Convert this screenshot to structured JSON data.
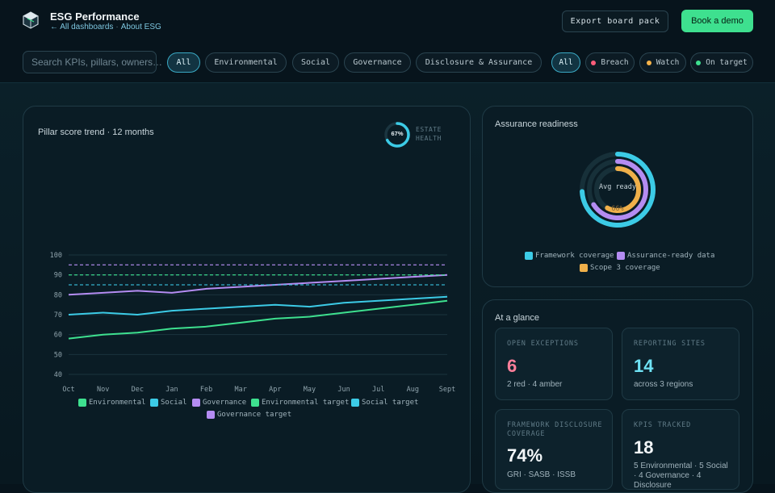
{
  "header": {
    "title": "ESG Performance",
    "back_link": "← All dashboards",
    "separator": "·",
    "about_link": "About ESG",
    "export_label": "Export board pack",
    "demo_label": "Book a demo"
  },
  "filters": {
    "search_placeholder": "Search KPIs, pillars, owners…",
    "pillars": [
      "All",
      "Environmental",
      "Social",
      "Governance",
      "Disclosure & Assurance"
    ],
    "statuses": [
      {
        "label": "All",
        "color": ""
      },
      {
        "label": "Breach",
        "color": "#ff5d7a"
      },
      {
        "label": "Watch",
        "color": "#f5b34a"
      },
      {
        "label": "On target",
        "color": "#3ee08f"
      }
    ]
  },
  "trend_card": {
    "title": "Pillar score trend · 12 months",
    "health_value": "67%",
    "health_label_line1": "ESTATE",
    "health_label_line2": "HEALTH"
  },
  "chart_data": {
    "type": "line",
    "x": [
      "Oct",
      "Nov",
      "Dec",
      "Jan",
      "Feb",
      "Mar",
      "Apr",
      "May",
      "Jun",
      "Jul",
      "Aug",
      "Sept"
    ],
    "ylim": [
      40,
      100
    ],
    "yticks": [
      40,
      50,
      60,
      70,
      80,
      90,
      100
    ],
    "grid": true,
    "legend": "bottom",
    "series": [
      {
        "name": "Environmental",
        "color": "#3ee08f",
        "style": "solid",
        "values": [
          58,
          60,
          61,
          63,
          64,
          66,
          68,
          69,
          71,
          73,
          75,
          77
        ]
      },
      {
        "name": "Social",
        "color": "#3ccbe6",
        "style": "solid",
        "values": [
          70,
          71,
          70,
          72,
          73,
          74,
          75,
          74,
          76,
          77,
          78,
          79
        ]
      },
      {
        "name": "Governance",
        "color": "#b48cf2",
        "style": "solid",
        "values": [
          80,
          81,
          82,
          81,
          83,
          84,
          85,
          86,
          87,
          88,
          89,
          90
        ]
      },
      {
        "name": "Environmental target",
        "color": "#3ee08f",
        "style": "dashed",
        "values": [
          90,
          90,
          90,
          90,
          90,
          90,
          90,
          90,
          90,
          90,
          90,
          90
        ]
      },
      {
        "name": "Social target",
        "color": "#3ccbe6",
        "style": "dashed",
        "values": [
          85,
          85,
          85,
          85,
          85,
          85,
          85,
          85,
          85,
          85,
          85,
          85
        ]
      },
      {
        "name": "Governance target",
        "color": "#b48cf2",
        "style": "dashed",
        "values": [
          95,
          95,
          95,
          95,
          95,
          95,
          95,
          95,
          95,
          95,
          95,
          95
        ]
      }
    ]
  },
  "assurance_card": {
    "title": "Assurance readiness",
    "center_label": "Avg ready",
    "center_value": "66%",
    "rings": [
      {
        "name": "Framework coverage",
        "color": "#3ccbe6",
        "value": 74
      },
      {
        "name": "Assurance-ready data",
        "color": "#b48cf2",
        "value": 66
      },
      {
        "name": "Scope 3 coverage",
        "color": "#f0b04a",
        "value": 58
      }
    ]
  },
  "glance_card": {
    "title": "At a glance",
    "kpis": [
      {
        "label": "OPEN EXCEPTIONS",
        "value": "6",
        "value_color": "#ff7f9a",
        "sub": "2 red · 4 amber"
      },
      {
        "label": "REPORTING SITES",
        "value": "14",
        "value_color": "#6fe3f5",
        "sub": "across 3 regions"
      },
      {
        "label": "FRAMEWORK DISCLOSURE COVERAGE",
        "value": "74%",
        "value_color": "#f2f6f8",
        "sub": "GRI · SASB · ISSB"
      },
      {
        "label": "KPIS TRACKED",
        "value": "18",
        "value_color": "#f2f6f8",
        "sub": "5 Environmental · 5 Social · 4 Governance · 4 Disclosure"
      }
    ]
  }
}
